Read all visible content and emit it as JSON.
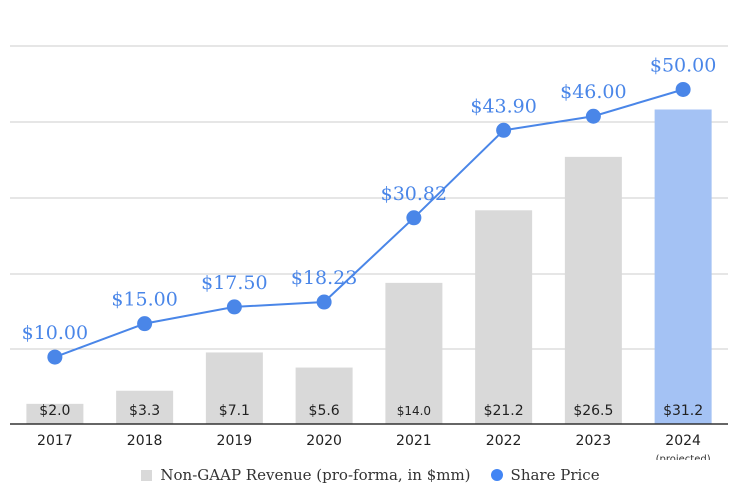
{
  "chart_data": {
    "type": "bar",
    "categories": [
      "2017",
      "2018",
      "2019",
      "2020",
      "2021",
      "2022",
      "2023",
      "2024"
    ],
    "category_sublabels": [
      "",
      "",
      "",
      "",
      "",
      "",
      "",
      "(projected)"
    ],
    "series": [
      {
        "name": "Non-GAAP Revenue (pro-forma, in $mm)",
        "type": "bar",
        "values": [
          2.0,
          3.3,
          7.1,
          5.6,
          14.0,
          21.2,
          26.5,
          31.2
        ],
        "data_labels": [
          "$2.0",
          "$3.3",
          "$7.1",
          "$5.6",
          "$14.0",
          "$21.2",
          "$26.5",
          "$31.2"
        ],
        "color": "#d9d9d9",
        "highlight_index": 7,
        "highlight_color": "#a4c2f4"
      },
      {
        "name": "Share Price",
        "type": "line",
        "values": [
          10.0,
          15.0,
          17.5,
          18.23,
          30.82,
          43.9,
          46.0,
          50.0
        ],
        "data_labels": [
          "$10.00",
          "$15.00",
          "$17.50",
          "$18.23",
          "$30.82",
          "$43.90",
          "$46.00",
          "$50.00"
        ],
        "color": "#4a86e8"
      }
    ],
    "bar_axis_max": 37.5,
    "line_axis_max": 56.5,
    "grid": true,
    "legend": "bottom"
  }
}
